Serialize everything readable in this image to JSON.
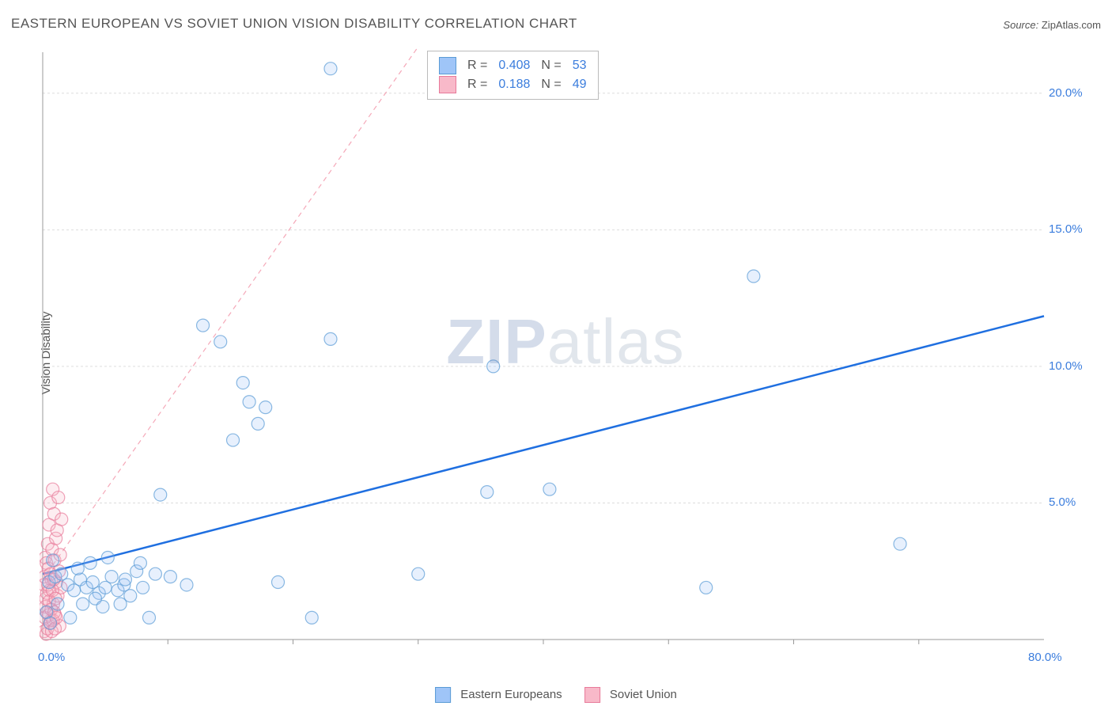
{
  "title": "EASTERN EUROPEAN VS SOVIET UNION VISION DISABILITY CORRELATION CHART",
  "source_label": "Source:",
  "source_name": "ZipAtlas.com",
  "ylabel": "Vision Disability",
  "watermark_a": "ZIP",
  "watermark_b": "atlas",
  "chart": {
    "type": "scatter",
    "xlim": [
      0,
      80
    ],
    "ylim": [
      0,
      21.5
    ],
    "x_ticks": [
      0,
      80
    ],
    "x_tick_labels": [
      "0.0%",
      "80.0%"
    ],
    "y_ticks": [
      5,
      10,
      15,
      20
    ],
    "y_tick_labels": [
      "5.0%",
      "10.0%",
      "15.0%",
      "20.0%"
    ],
    "grid_color": "#dddddd",
    "axis_color": "#999999",
    "x_minor_ticks": [
      10,
      20,
      30,
      40,
      50,
      60,
      70
    ],
    "background_color": "#ffffff",
    "marker_radius": 8,
    "marker_stroke_opacity": 0.7,
    "marker_fill_opacity": 0.25
  },
  "series": [
    {
      "name": "Eastern Europeans",
      "color_fill": "#9fc5f8",
      "color_stroke": "#5a9bd5",
      "trend_color": "#1f6fe0",
      "trend_width": 2.5,
      "trend_dash": "none",
      "trend_intercept": 2.4,
      "trend_slope": 0.118,
      "R": "0.408",
      "N": "53",
      "points": [
        [
          0.5,
          2.1
        ],
        [
          1.0,
          2.3
        ],
        [
          1.5,
          2.4
        ],
        [
          2.0,
          2.0
        ],
        [
          2.5,
          1.8
        ],
        [
          3.0,
          2.2
        ],
        [
          3.5,
          1.9
        ],
        [
          4.0,
          2.1
        ],
        [
          4.5,
          1.7
        ],
        [
          5.0,
          1.9
        ],
        [
          5.5,
          2.3
        ],
        [
          6.0,
          1.8
        ],
        [
          6.5,
          2.0
        ],
        [
          7.0,
          1.6
        ],
        [
          7.5,
          2.5
        ],
        [
          8.0,
          1.9
        ],
        [
          8.5,
          0.8
        ],
        [
          2.8,
          2.6
        ],
        [
          3.8,
          2.8
        ],
        [
          5.2,
          3.0
        ],
        [
          6.6,
          2.2
        ],
        [
          7.8,
          2.8
        ],
        [
          9.0,
          2.4
        ],
        [
          10.2,
          2.3
        ],
        [
          11.5,
          2.0
        ],
        [
          9.4,
          5.3
        ],
        [
          12.8,
          11.5
        ],
        [
          14.2,
          10.9
        ],
        [
          16.0,
          9.4
        ],
        [
          16.5,
          8.7
        ],
        [
          17.8,
          8.5
        ],
        [
          17.2,
          7.9
        ],
        [
          15.2,
          7.3
        ],
        [
          18.8,
          2.1
        ],
        [
          21.5,
          0.8
        ],
        [
          23.0,
          11.0
        ],
        [
          30.0,
          2.4
        ],
        [
          35.5,
          5.4
        ],
        [
          40.5,
          5.5
        ],
        [
          36.0,
          10.0
        ],
        [
          53.0,
          1.9
        ],
        [
          56.8,
          13.3
        ],
        [
          68.5,
          3.5
        ],
        [
          4.2,
          1.5
        ],
        [
          2.2,
          0.8
        ],
        [
          1.2,
          1.3
        ],
        [
          0.8,
          2.9
        ],
        [
          0.3,
          1.0
        ],
        [
          0.6,
          0.6
        ],
        [
          3.2,
          1.3
        ],
        [
          4.8,
          1.2
        ],
        [
          6.2,
          1.3
        ],
        [
          23.0,
          20.9
        ]
      ]
    },
    {
      "name": "Soviet Union",
      "color_fill": "#f8b9c9",
      "color_stroke": "#e87a9a",
      "trend_color": "#f5a8b8",
      "trend_width": 1.2,
      "trend_dash": "6 5",
      "trend_intercept": 2.2,
      "trend_slope": 0.65,
      "R": "0.188",
      "N": "49",
      "points": [
        [
          0.1,
          2.0
        ],
        [
          0.15,
          2.3
        ],
        [
          0.2,
          3.0
        ],
        [
          0.25,
          1.5
        ],
        [
          0.3,
          2.8
        ],
        [
          0.35,
          1.0
        ],
        [
          0.4,
          3.5
        ],
        [
          0.45,
          2.6
        ],
        [
          0.5,
          4.2
        ],
        [
          0.55,
          1.8
        ],
        [
          0.6,
          5.0
        ],
        [
          0.65,
          0.7
        ],
        [
          0.7,
          2.2
        ],
        [
          0.75,
          3.3
        ],
        [
          0.8,
          5.5
        ],
        [
          0.85,
          1.3
        ],
        [
          0.9,
          4.6
        ],
        [
          0.95,
          2.9
        ],
        [
          1.0,
          0.9
        ],
        [
          1.05,
          3.7
        ],
        [
          1.1,
          2.1
        ],
        [
          1.15,
          4.0
        ],
        [
          1.2,
          1.6
        ],
        [
          1.25,
          5.2
        ],
        [
          1.3,
          2.5
        ],
        [
          1.35,
          0.5
        ],
        [
          1.4,
          3.1
        ],
        [
          1.45,
          1.9
        ],
        [
          1.5,
          4.4
        ],
        [
          0.12,
          0.3
        ],
        [
          0.18,
          0.8
        ],
        [
          0.22,
          1.2
        ],
        [
          0.28,
          0.2
        ],
        [
          0.33,
          1.7
        ],
        [
          0.38,
          0.4
        ],
        [
          0.42,
          2.0
        ],
        [
          0.48,
          0.9
        ],
        [
          0.52,
          1.4
        ],
        [
          0.58,
          0.6
        ],
        [
          0.62,
          2.4
        ],
        [
          0.68,
          1.1
        ],
        [
          0.72,
          0.3
        ],
        [
          0.78,
          1.8
        ],
        [
          0.82,
          0.7
        ],
        [
          0.88,
          2.2
        ],
        [
          0.92,
          1.0
        ],
        [
          0.98,
          0.4
        ],
        [
          1.02,
          1.5
        ],
        [
          1.08,
          0.8
        ]
      ]
    }
  ],
  "stats_box": {
    "r_label": "R =",
    "n_label": "N ="
  }
}
